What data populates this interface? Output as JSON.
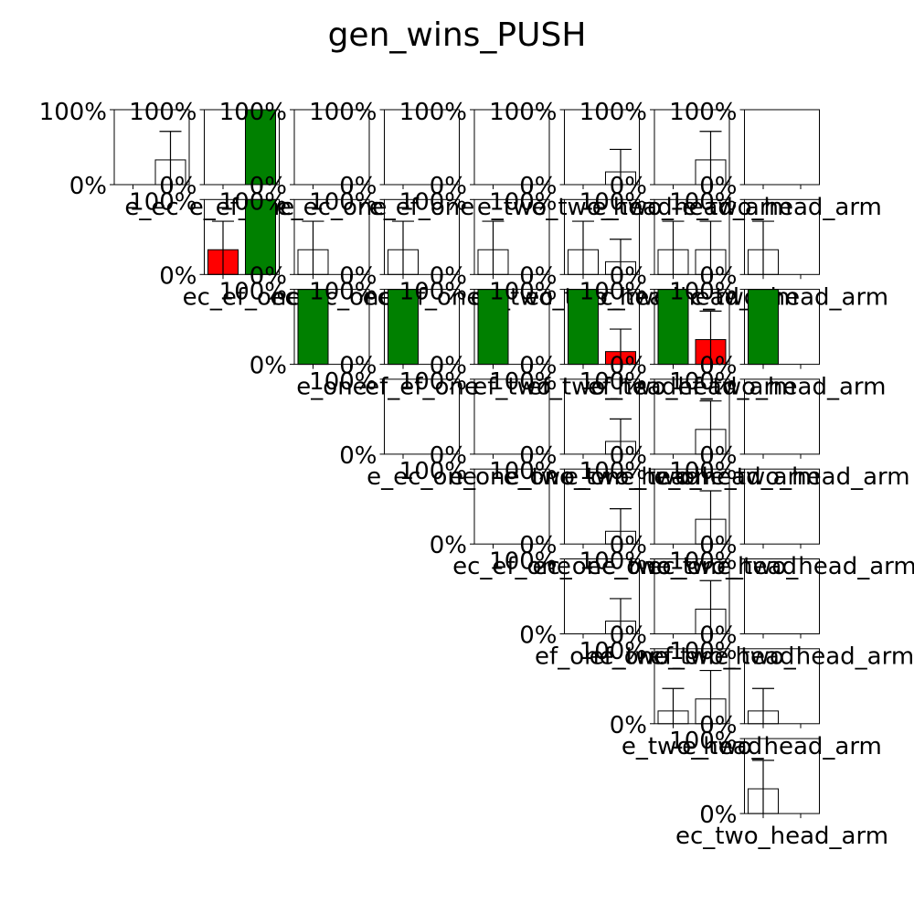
{
  "colors": {
    "win": "#008000",
    "loss": "#ff0000",
    "empty": "#ffffff",
    "frame": "#000000",
    "errorbar": "#000000"
  },
  "chart_data": {
    "type": "bar",
    "title": "gen_wins_PUSH",
    "ylim": [
      0,
      1
    ],
    "ytick_labels": [
      "0%",
      "100%"
    ],
    "grid": false,
    "legend": "none",
    "layout": "upper-triangular grid of small bar panels, 2 bars per panel",
    "panels": [
      {
        "row": 0,
        "col": 0,
        "xlabel": "e_ec",
        "bars": [
          {
            "value": 0.0,
            "err": 0.0,
            "color": "empty"
          },
          {
            "value": 0.33,
            "err": 0.38,
            "color": "empty"
          }
        ]
      },
      {
        "row": 0,
        "col": 1,
        "xlabel": "e_ef_one",
        "bars": [
          {
            "value": 0.0,
            "err": 0.0,
            "color": "empty"
          },
          {
            "value": 1.0,
            "err": 0.0,
            "color": "win"
          }
        ]
      },
      {
        "row": 0,
        "col": 2,
        "xlabel": "e_ec_one",
        "bars": [
          {
            "value": 0.0,
            "err": 0.0,
            "color": "empty"
          },
          {
            "value": 0.0,
            "err": 0.0,
            "color": "empty"
          }
        ]
      },
      {
        "row": 0,
        "col": 3,
        "xlabel": "e_ef_one",
        "bars": [
          {
            "value": 0.0,
            "err": 0.0,
            "color": "empty"
          },
          {
            "value": 0.0,
            "err": 0.0,
            "color": "empty"
          }
        ]
      },
      {
        "row": 0,
        "col": 4,
        "xlabel": "e_two",
        "bars": [
          {
            "value": 0.0,
            "err": 0.0,
            "color": "empty"
          },
          {
            "value": 0.0,
            "err": 0.0,
            "color": "empty"
          }
        ]
      },
      {
        "row": 0,
        "col": 5,
        "xlabel": "e_two_head",
        "bars": [
          {
            "value": 0.0,
            "err": 0.0,
            "color": "empty"
          },
          {
            "value": 0.17,
            "err": 0.3,
            "color": "empty"
          }
        ]
      },
      {
        "row": 0,
        "col": 6,
        "xlabel": "e_two_head_arm",
        "bars": [
          {
            "value": 0.0,
            "err": 0.0,
            "color": "empty"
          },
          {
            "value": 0.33,
            "err": 0.38,
            "color": "empty"
          }
        ]
      },
      {
        "row": 0,
        "col": 7,
        "xlabel": "e_two_head_arm",
        "bars": [
          {
            "value": 0.0,
            "err": 0.0,
            "color": "empty"
          },
          {
            "value": 0.0,
            "err": 0.0,
            "color": "empty"
          }
        ]
      },
      {
        "row": 1,
        "col": 1,
        "xlabel": "ec_ef_one",
        "bars": [
          {
            "value": 0.33,
            "err": 0.38,
            "color": "loss"
          },
          {
            "value": 1.0,
            "err": 0.0,
            "color": "win"
          }
        ]
      },
      {
        "row": 1,
        "col": 2,
        "xlabel": "ec_ec_one",
        "bars": [
          {
            "value": 0.33,
            "err": 0.38,
            "color": "empty"
          },
          {
            "value": 0.0,
            "err": 0.0,
            "color": "empty"
          }
        ]
      },
      {
        "row": 1,
        "col": 3,
        "xlabel": "ec_ef_one",
        "bars": [
          {
            "value": 0.33,
            "err": 0.38,
            "color": "empty"
          },
          {
            "value": 0.0,
            "err": 0.0,
            "color": "empty"
          }
        ]
      },
      {
        "row": 1,
        "col": 4,
        "xlabel": "ec_two",
        "bars": [
          {
            "value": 0.33,
            "err": 0.38,
            "color": "empty"
          },
          {
            "value": 0.0,
            "err": 0.0,
            "color": "empty"
          }
        ]
      },
      {
        "row": 1,
        "col": 5,
        "xlabel": "ec_two_head",
        "bars": [
          {
            "value": 0.33,
            "err": 0.38,
            "color": "empty"
          },
          {
            "value": 0.17,
            "err": 0.3,
            "color": "empty"
          }
        ]
      },
      {
        "row": 1,
        "col": 6,
        "xlabel": "ec_two_head_arm",
        "bars": [
          {
            "value": 0.33,
            "err": 0.38,
            "color": "empty"
          },
          {
            "value": 0.33,
            "err": 0.38,
            "color": "empty"
          }
        ]
      },
      {
        "row": 1,
        "col": 7,
        "xlabel": "ec_two_head_arm",
        "bars": [
          {
            "value": 0.33,
            "err": 0.38,
            "color": "empty"
          },
          {
            "value": 0.0,
            "err": 0.0,
            "color": "empty"
          }
        ]
      },
      {
        "row": 2,
        "col": 2,
        "xlabel": "e_one",
        "bars": [
          {
            "value": 1.0,
            "err": 0.0,
            "color": "win"
          },
          {
            "value": 0.0,
            "err": 0.0,
            "color": "empty"
          }
        ]
      },
      {
        "row": 2,
        "col": 3,
        "xlabel": "ef_ef_one",
        "bars": [
          {
            "value": 1.0,
            "err": 0.0,
            "color": "win"
          },
          {
            "value": 0.0,
            "err": 0.0,
            "color": "empty"
          }
        ]
      },
      {
        "row": 2,
        "col": 4,
        "xlabel": "ef_two",
        "bars": [
          {
            "value": 1.0,
            "err": 0.0,
            "color": "win"
          },
          {
            "value": 0.0,
            "err": 0.0,
            "color": "empty"
          }
        ]
      },
      {
        "row": 2,
        "col": 5,
        "xlabel": "ef_two_head",
        "bars": [
          {
            "value": 1.0,
            "err": 0.0,
            "color": "win"
          },
          {
            "value": 0.17,
            "err": 0.3,
            "color": "loss"
          }
        ]
      },
      {
        "row": 2,
        "col": 6,
        "xlabel": "ef_two_head_arm",
        "bars": [
          {
            "value": 1.0,
            "err": 0.0,
            "color": "win"
          },
          {
            "value": 0.33,
            "err": 0.38,
            "color": "loss"
          }
        ]
      },
      {
        "row": 2,
        "col": 7,
        "xlabel": "ef_two_head_arm",
        "bars": [
          {
            "value": 1.0,
            "err": 0.0,
            "color": "win"
          },
          {
            "value": 0.0,
            "err": 0.0,
            "color": "empty"
          }
        ]
      },
      {
        "row": 3,
        "col": 3,
        "xlabel": "e_ec_one",
        "bars": [
          {
            "value": 0.0,
            "err": 0.0,
            "color": "empty"
          },
          {
            "value": 0.0,
            "err": 0.0,
            "color": "empty"
          }
        ]
      },
      {
        "row": 3,
        "col": 4,
        "xlabel": "e_one_two",
        "bars": [
          {
            "value": 0.0,
            "err": 0.0,
            "color": "empty"
          },
          {
            "value": 0.0,
            "err": 0.0,
            "color": "empty"
          }
        ]
      },
      {
        "row": 3,
        "col": 5,
        "xlabel": "e_one_two_head",
        "bars": [
          {
            "value": 0.0,
            "err": 0.0,
            "color": "empty"
          },
          {
            "value": 0.17,
            "err": 0.3,
            "color": "empty"
          }
        ]
      },
      {
        "row": 3,
        "col": 6,
        "xlabel": "e_one_two_head_arm",
        "bars": [
          {
            "value": 0.0,
            "err": 0.0,
            "color": "empty"
          },
          {
            "value": 0.33,
            "err": 0.38,
            "color": "empty"
          }
        ]
      },
      {
        "row": 3,
        "col": 7,
        "xlabel": "e_one_two_head_arm",
        "bars": [
          {
            "value": 0.0,
            "err": 0.0,
            "color": "empty"
          },
          {
            "value": 0.0,
            "err": 0.0,
            "color": "empty"
          }
        ]
      },
      {
        "row": 4,
        "col": 4,
        "xlabel": "ec_ef_one",
        "bars": [
          {
            "value": 0.0,
            "err": 0.0,
            "color": "empty"
          },
          {
            "value": 0.0,
            "err": 0.0,
            "color": "empty"
          }
        ]
      },
      {
        "row": 4,
        "col": 5,
        "xlabel": "ec_one_two",
        "bars": [
          {
            "value": 0.0,
            "err": 0.0,
            "color": "empty"
          },
          {
            "value": 0.17,
            "err": 0.3,
            "color": "empty"
          }
        ]
      },
      {
        "row": 4,
        "col": 6,
        "xlabel": "ec_one_two_head",
        "bars": [
          {
            "value": 0.0,
            "err": 0.0,
            "color": "empty"
          },
          {
            "value": 0.33,
            "err": 0.38,
            "color": "empty"
          }
        ]
      },
      {
        "row": 4,
        "col": 7,
        "xlabel": "ec_one_two_head_arm",
        "bars": [
          {
            "value": 0.0,
            "err": 0.0,
            "color": "empty"
          },
          {
            "value": 0.0,
            "err": 0.0,
            "color": "empty"
          }
        ]
      },
      {
        "row": 5,
        "col": 5,
        "xlabel": "ef_one_two",
        "bars": [
          {
            "value": 0.0,
            "err": 0.0,
            "color": "empty"
          },
          {
            "value": 0.17,
            "err": 0.3,
            "color": "empty"
          }
        ]
      },
      {
        "row": 5,
        "col": 6,
        "xlabel": "ef_one_two_head",
        "bars": [
          {
            "value": 0.0,
            "err": 0.0,
            "color": "empty"
          },
          {
            "value": 0.33,
            "err": 0.38,
            "color": "empty"
          }
        ]
      },
      {
        "row": 5,
        "col": 7,
        "xlabel": "ef_one_two_head_arm",
        "bars": [
          {
            "value": 0.0,
            "err": 0.0,
            "color": "empty"
          },
          {
            "value": 0.0,
            "err": 0.0,
            "color": "empty"
          }
        ]
      },
      {
        "row": 6,
        "col": 6,
        "xlabel": "e_two_head",
        "bars": [
          {
            "value": 0.17,
            "err": 0.3,
            "color": "empty"
          },
          {
            "value": 0.33,
            "err": 0.38,
            "color": "empty"
          }
        ]
      },
      {
        "row": 6,
        "col": 7,
        "xlabel": "e_two_head_arm",
        "bars": [
          {
            "value": 0.17,
            "err": 0.3,
            "color": "empty"
          },
          {
            "value": 0.0,
            "err": 0.0,
            "color": "empty"
          }
        ]
      },
      {
        "row": 7,
        "col": 7,
        "xlabel": "ec_two_head_arm",
        "bars": [
          {
            "value": 0.33,
            "err": 0.38,
            "color": "empty"
          },
          {
            "value": 0.0,
            "err": 0.0,
            "color": "empty"
          }
        ]
      }
    ]
  }
}
